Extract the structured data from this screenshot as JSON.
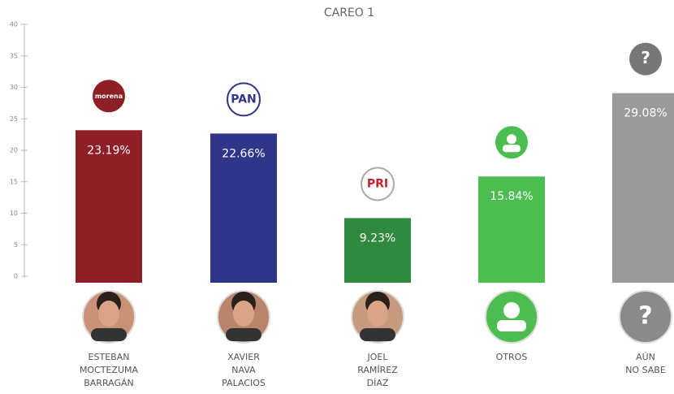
{
  "chart_data": {
    "type": "bar",
    "title": "CAREO 1",
    "categories": [
      [
        "ESTEBAN",
        "MOCTEZUMA",
        "BARRAGÁN"
      ],
      [
        "XAVIER",
        "NAVA",
        "PALACIOS"
      ],
      [
        "JOEL",
        "RAMÍREZ",
        "DÍAZ"
      ],
      [
        "OTROS"
      ],
      [
        "AÚN",
        "NO SABE"
      ]
    ],
    "values": [
      23.19,
      22.66,
      9.23,
      15.84,
      29.08
    ],
    "value_labels": [
      "23.19%",
      "22.66%",
      "9.23%",
      "15.84%",
      "29.08%"
    ],
    "colors": [
      "#8e1f26",
      "#2f3689",
      "#2f8a3f",
      "#4cbe50",
      "#9a9a9a"
    ],
    "logos": [
      "morena",
      "PAN",
      "PRI",
      null,
      "?"
    ],
    "photos": [
      null,
      null,
      null,
      null,
      "?"
    ],
    "ylim": [
      0,
      40
    ],
    "yticks": [
      0,
      5,
      10,
      15,
      20,
      25,
      30,
      35,
      40
    ],
    "grid": false
  }
}
